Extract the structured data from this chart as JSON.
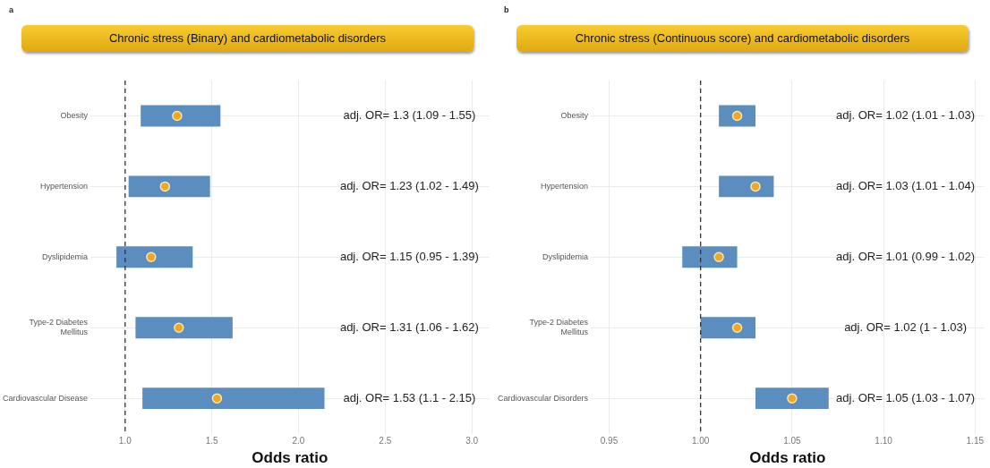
{
  "chart_data": [
    {
      "type": "bar",
      "orientation": "horizontal",
      "subtitle": "a",
      "title": "Chronic stress (Binary) and cardiometabolic disorders",
      "xlabel": "Odds ratio",
      "categories": [
        "Obesity",
        "Hypertension",
        "Dyslipidemia",
        "Type-2 Diabetes\nMellitus",
        "Cardiovascular Disease"
      ],
      "series": [
        {
          "color": "#5b8dbf",
          "base": [
            1.09,
            1.02,
            0.95,
            1.06,
            1.1
          ],
          "values": [
            0.46,
            0.47,
            0.44,
            0.56,
            1.05
          ]
        },
        {
          "type": "scatter",
          "color": "#eea825",
          "marker": "circle",
          "values": [
            1.3,
            1.23,
            1.15,
            1.31,
            1.53
          ]
        }
      ],
      "xlim": [
        0.8,
        3.1
      ],
      "xticks": [
        {
          "value": 1,
          "label": "1.0"
        },
        1.5,
        {
          "value": 2,
          "label": "2.0"
        },
        2.5,
        {
          "value": 3,
          "label": "3.0"
        }
      ],
      "ref_lines": [
        {
          "axis": "x",
          "value": 1,
          "line_style": "dashed",
          "color": "#333333"
        }
      ],
      "grid": true,
      "legend": false,
      "annotations": [
        "adj. OR= 1.3 (1.09 - 1.55)",
        "adj. OR= 1.23 (1.02 - 1.49)",
        "adj. OR= 1.15 (0.95 - 1.39)",
        "adj. OR= 1.31 (1.06 - 1.62)",
        "adj. OR= 1.53 (1.1 - 2.15)"
      ]
    },
    {
      "type": "bar",
      "orientation": "horizontal",
      "subtitle": "b",
      "title": "Chronic stress (Continuous score) and cardiometabolic disorders",
      "xlabel": "Odds ratio",
      "categories": [
        "Obesity",
        "Hypertension",
        "Dyslipidemia",
        "Type-2 Diabetes\nMellitus",
        "Cardiovascular Disorders"
      ],
      "series": [
        {
          "color": "#5b8dbf",
          "base": [
            1.01,
            1.01,
            0.99,
            1,
            1.03
          ],
          "values": [
            0.02,
            0.03,
            0.03,
            0.03,
            0.04
          ]
        },
        {
          "type": "scatter",
          "color": "#eea825",
          "marker": "circle",
          "values": [
            1.02,
            1.03,
            1.01,
            1.02,
            1.05
          ]
        }
      ],
      "xlim": [
        0.94,
        1.155
      ],
      "xticks": [
        0.95,
        {
          "value": 1,
          "label": "1.00"
        },
        1.05,
        {
          "value": 1.1,
          "label": "1.10"
        },
        1.15
      ],
      "ref_lines": [
        {
          "axis": "x",
          "value": 1,
          "line_style": "dashed",
          "color": "#333333"
        }
      ],
      "grid": true,
      "legend": false,
      "annotations": [
        "adj. OR= 1.02 (1.01 - 1.03)",
        "adj. OR= 1.03 (1.01 - 1.04)",
        "adj. OR= 1.01 (0.99 - 1.02)",
        "adj. OR= 1.02 (1 - 1.03)",
        "adj. OR= 1.05 (1.03 - 1.07)"
      ]
    }
  ]
}
